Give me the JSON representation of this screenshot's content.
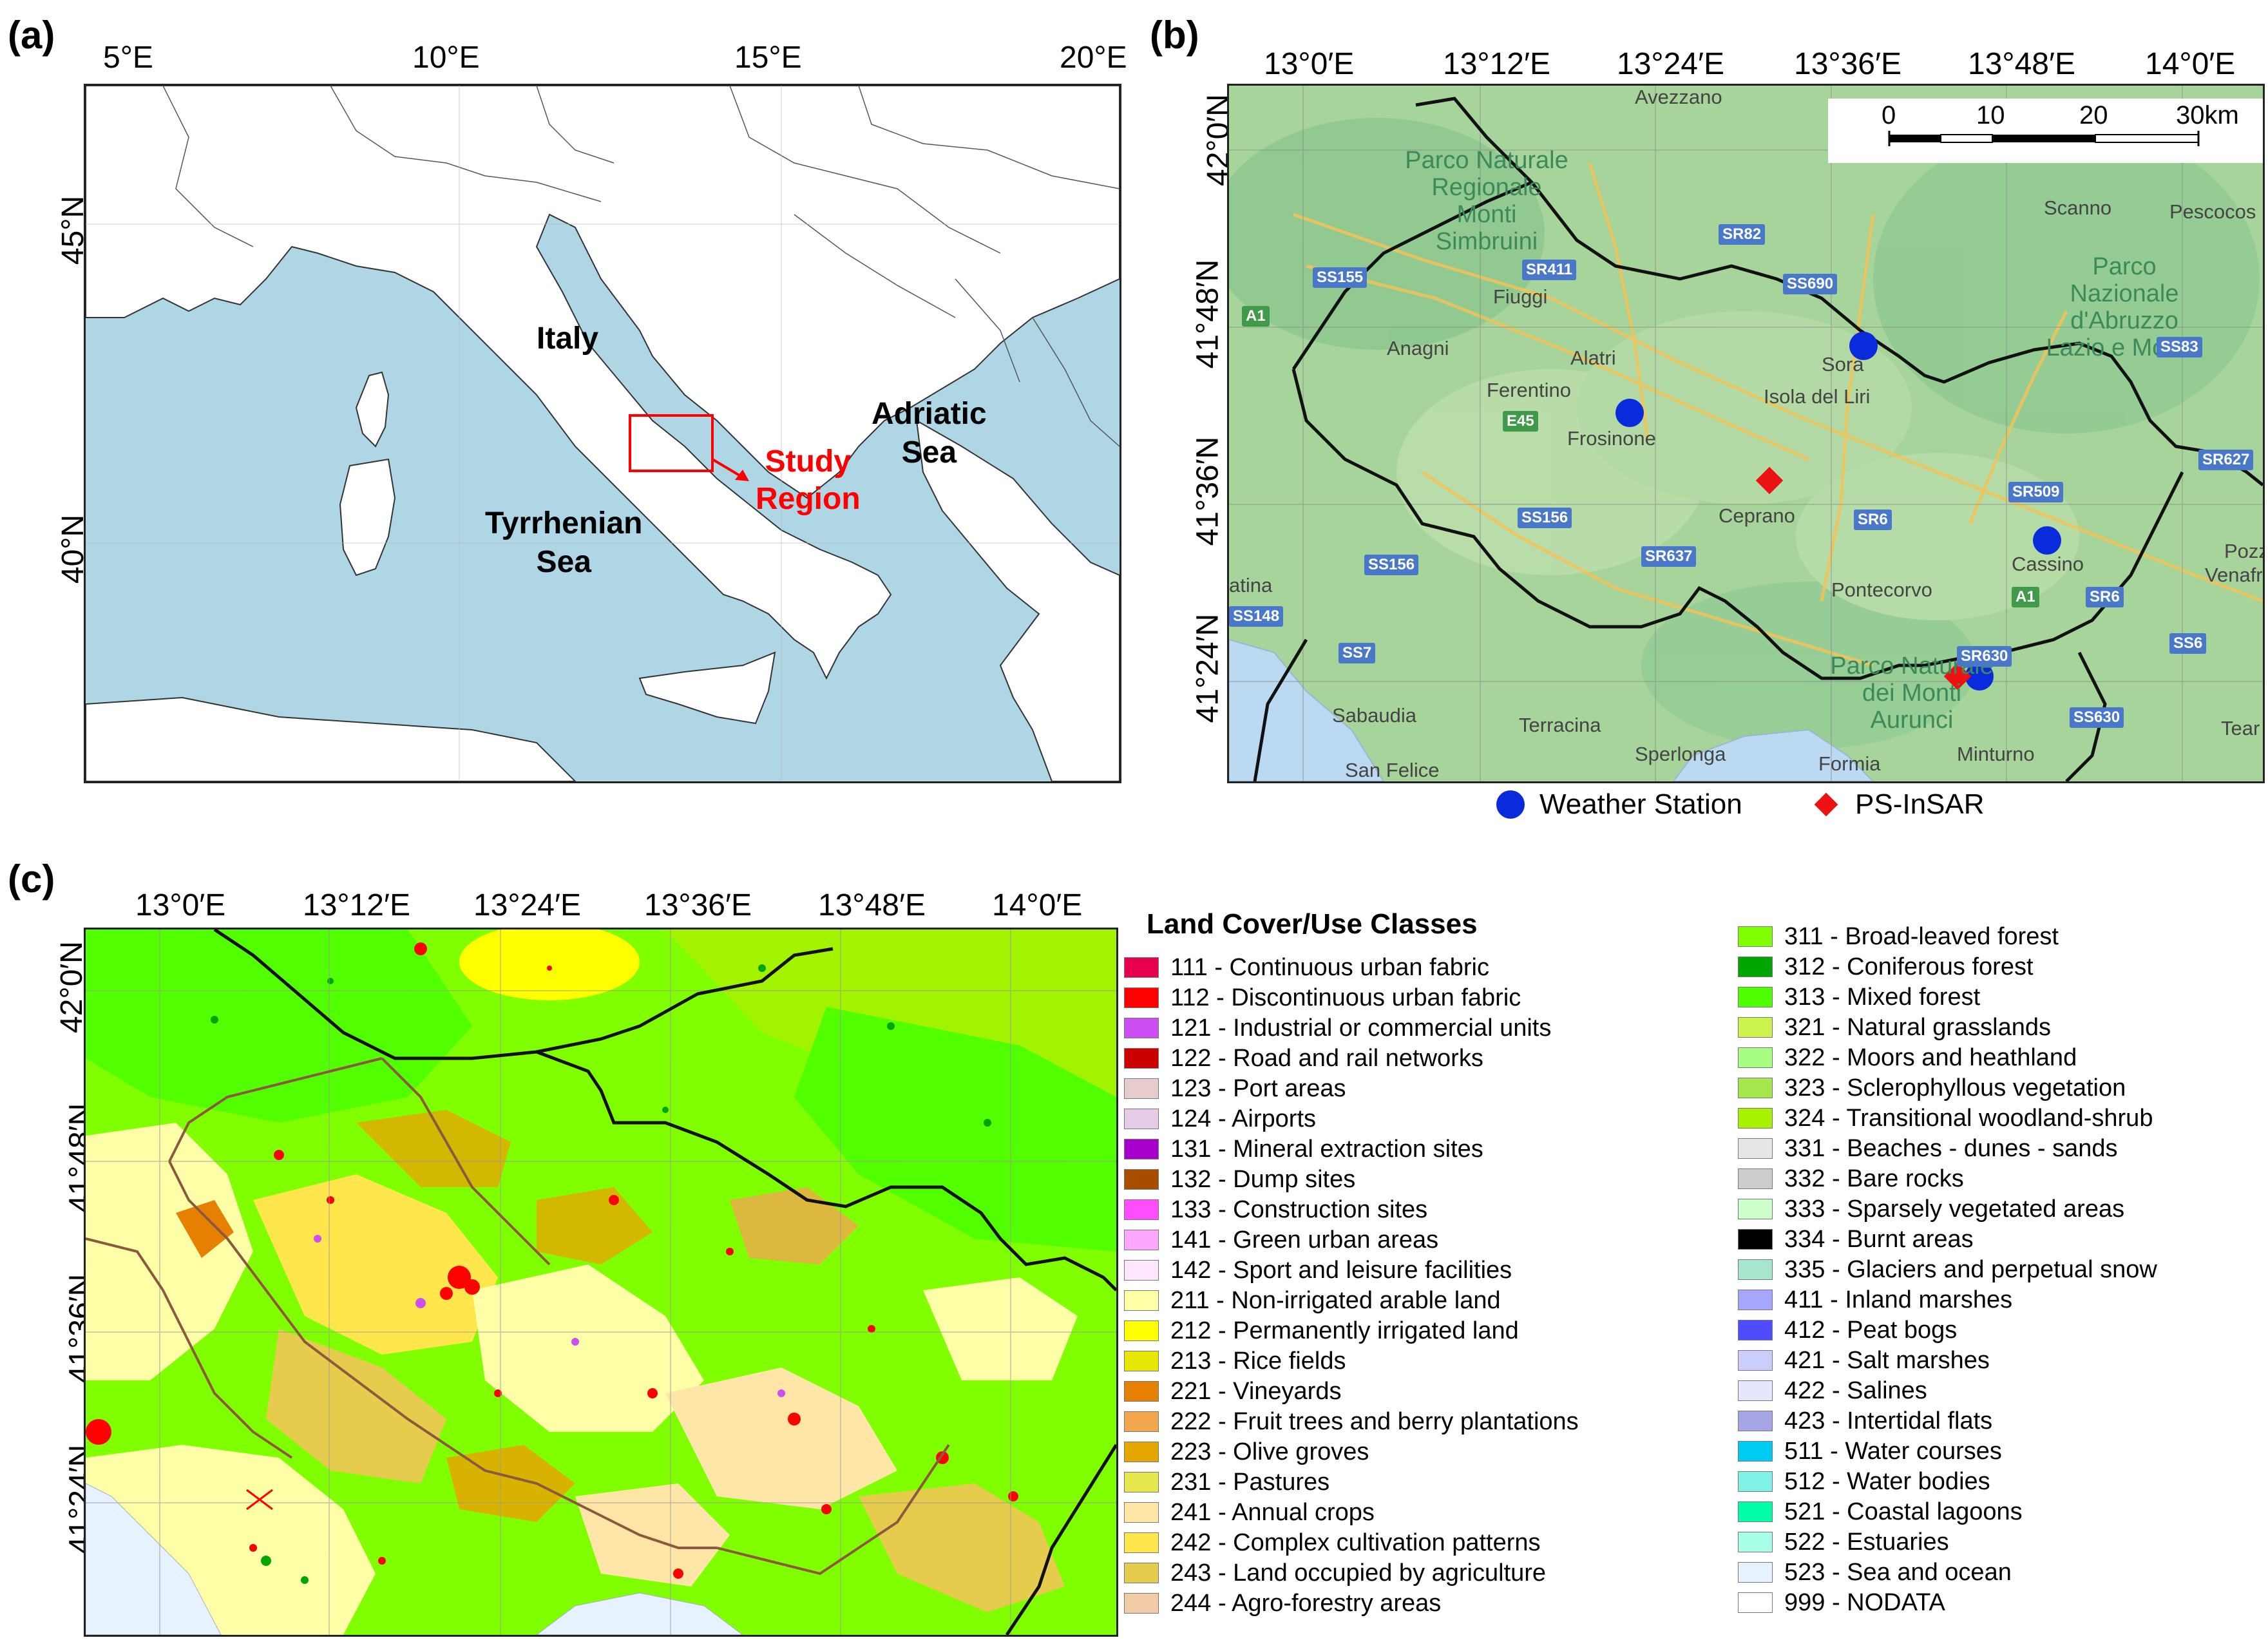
{
  "panel_a": {
    "label": "(a)",
    "lon_ticks": [
      "5°E",
      "10°E",
      "15°E",
      "20°E"
    ],
    "lat_ticks": [
      "45°N",
      "40°N"
    ],
    "labels": {
      "italy": "Italy",
      "adriatic_line1": "Adriatic",
      "adriatic_line2": "Sea",
      "tyrrhenian_line1": "Tyrrhenian",
      "tyrrhenian_line2": "Sea",
      "study_line1": "Study",
      "study_line2": "Region"
    },
    "colors": {
      "sea": "#aed6e5",
      "land": "#ffffff",
      "study_box": "#ff0000"
    }
  },
  "panel_b": {
    "label": "(b)",
    "lon_ticks": [
      "13°0′E",
      "13°12′E",
      "13°24′E",
      "13°36′E",
      "13°48′E",
      "14°0′E"
    ],
    "lat_ticks": [
      "42°0′N",
      "41°48′N",
      "41°36′N",
      "41°24′N"
    ],
    "scale_bar": {
      "ticks": [
        "0",
        "10",
        "20",
        "30km"
      ]
    },
    "towns": {
      "avezzano": "Avezzano",
      "fiuggi": "Fiuggi",
      "anagni": "Anagni",
      "alatri": "Alatri",
      "ferentino": "Ferentino",
      "frosinone": "Frosinone",
      "sora": "Sora",
      "isola": "Isola del Liri",
      "ceprano": "Ceprano",
      "cassino": "Cassino",
      "pontecorvo": "Pontecorvo",
      "scanno": "Scanno",
      "pescocos": "Pescocos",
      "terracina": "Terracina",
      "sabaudia": "Sabaudia",
      "sperlonga": "Sperlonga",
      "formia": "Formia",
      "minturno": "Minturno",
      "san_felice": "San Felice",
      "latina": "atina",
      "pozz": "Pozz",
      "venafr": "Venafr",
      "tear": "Tear"
    },
    "parks": {
      "simbruini": [
        "Parco Naturale",
        "Regionale",
        "Monti",
        "Simbruini"
      ],
      "abruzzo": [
        "Parco",
        "Nazionale",
        "d'Abruzzo",
        "Lazio e Molise"
      ],
      "aurunci": [
        "Parco Naturale",
        "dei Monti",
        "Aurunci"
      ]
    },
    "roads": {
      "sr82": "SR82",
      "sr411": "SR411",
      "ss155": "SS155",
      "ss690": "SS690",
      "a1": "A1",
      "e45": "E45",
      "ss156a": "SS156",
      "ss156b": "SS156",
      "sr637": "SR637",
      "sr509": "SR509",
      "sr6a": "SR6",
      "sr6b": "SR6",
      "ss148": "SS148",
      "ss7": "SS7",
      "sr630": "SR630",
      "ss83": "SS83",
      "sr627": "SR627",
      "a1b": "A1",
      "ss6": "SS6",
      "ss630": "SS630"
    },
    "legend": {
      "weather": "Weather Station",
      "psinsar": "PS-InSAR"
    },
    "colors": {
      "weather": "#0a2bdc",
      "psinsar": "#ee1111",
      "terrain": "#a6d49a",
      "water": "#bcd9f2"
    }
  },
  "panel_c": {
    "label": "(c)",
    "lon_ticks": [
      "13°0′E",
      "13°12′E",
      "13°24′E",
      "13°36′E",
      "13°48′E",
      "14°0′E"
    ],
    "lat_ticks": [
      "42°0′N",
      "41°48′N",
      "41°36′N",
      "41°24′N"
    ],
    "legend_title": "Land Cover/Use Classes",
    "classes_left": [
      {
        "label": "111 - Continuous urban fabric",
        "color": "#e6004d"
      },
      {
        "label": "112 - Discontinuous urban fabric",
        "color": "#ff0000"
      },
      {
        "label": "121 - Industrial or commercial units",
        "color": "#cc4df2"
      },
      {
        "label": "122 - Road and rail networks",
        "color": "#cc0000"
      },
      {
        "label": "123 - Port areas",
        "color": "#e6cccc"
      },
      {
        "label": "124 - Airports",
        "color": "#e6cce6"
      },
      {
        "label": "131 - Mineral extraction sites",
        "color": "#a600cc"
      },
      {
        "label": "132 - Dump sites",
        "color": "#a64d00"
      },
      {
        "label": "133 - Construction sites",
        "color": "#ff4dff"
      },
      {
        "label": "141 - Green urban areas",
        "color": "#ffa6ff"
      },
      {
        "label": "142 - Sport and leisure facilities",
        "color": "#ffe6ff"
      },
      {
        "label": "211 - Non-irrigated arable land",
        "color": "#ffffa8"
      },
      {
        "label": "212 - Permanently irrigated land",
        "color": "#ffff00"
      },
      {
        "label": "213 - Rice fields",
        "color": "#e6e600"
      },
      {
        "label": "221 - Vineyards",
        "color": "#e68000"
      },
      {
        "label": "222 - Fruit trees and berry plantations",
        "color": "#f2a64d"
      },
      {
        "label": "223 - Olive groves",
        "color": "#e6a600"
      },
      {
        "label": "231 - Pastures",
        "color": "#e6e64d"
      },
      {
        "label": "241 - Annual crops",
        "color": "#ffe6a6"
      },
      {
        "label": "242 - Complex cultivation patterns",
        "color": "#ffe64d"
      },
      {
        "label": "243 - Land occupied by agriculture",
        "color": "#e6cc4d"
      },
      {
        "label": "244 - Agro-forestry areas",
        "color": "#f2cca6"
      }
    ],
    "classes_right": [
      {
        "label": "311 - Broad-leaved forest",
        "color": "#80ff00"
      },
      {
        "label": "312 - Coniferous forest",
        "color": "#00a600"
      },
      {
        "label": "313 - Mixed forest",
        "color": "#4dff00"
      },
      {
        "label": "321 - Natural grasslands",
        "color": "#ccf24d"
      },
      {
        "label": "322 - Moors and heathland",
        "color": "#a6ff80"
      },
      {
        "label": "323 - Sclerophyllous vegetation",
        "color": "#a6e64d"
      },
      {
        "label": "324 - Transitional woodland-shrub",
        "color": "#a6f200"
      },
      {
        "label": "331 - Beaches - dunes - sands",
        "color": "#e6e6e6"
      },
      {
        "label": "332 - Bare rocks",
        "color": "#cccccc"
      },
      {
        "label": "333 - Sparsely vegetated areas",
        "color": "#ccffcc"
      },
      {
        "label": "334 - Burnt areas",
        "color": "#000000"
      },
      {
        "label": "335 - Glaciers and perpetual snow",
        "color": "#a6e6cc"
      },
      {
        "label": "411 - Inland marshes",
        "color": "#a6a6ff"
      },
      {
        "label": "412 - Peat bogs",
        "color": "#4d4dff"
      },
      {
        "label": "421 - Salt marshes",
        "color": "#ccccff"
      },
      {
        "label": "422 - Salines",
        "color": "#e6e6ff"
      },
      {
        "label": "423 - Intertidal flats",
        "color": "#a6a6e6"
      },
      {
        "label": "511 - Water courses",
        "color": "#00ccf2"
      },
      {
        "label": "512 - Water bodies",
        "color": "#80f2e6"
      },
      {
        "label": "521 - Coastal lagoons",
        "color": "#00ffa6"
      },
      {
        "label": "522 - Estuaries",
        "color": "#a6ffe6"
      },
      {
        "label": "523 - Sea and ocean",
        "color": "#e6f2ff"
      },
      {
        "label": "999 - NODATA",
        "color": "#ffffff"
      }
    ]
  }
}
